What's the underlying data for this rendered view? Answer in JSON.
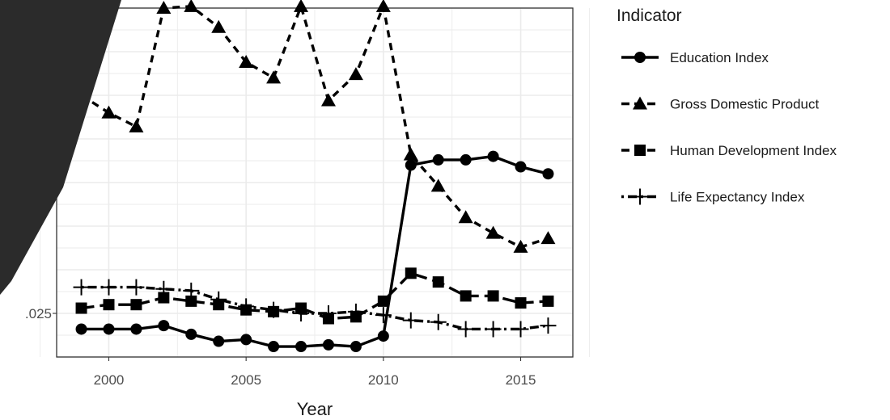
{
  "chart_data": {
    "type": "line",
    "xlabel": "Year",
    "ylabel": "",
    "x_ticks": [
      2000,
      2005,
      2010,
      2015
    ],
    "y_tick_labels": [
      ".025"
    ],
    "xlim": [
      1998.1,
      2016.9
    ],
    "ylim": [
      0.0,
      0.2
    ],
    "legend": {
      "title": "Indicator",
      "position": "right"
    },
    "grid": true,
    "x": [
      1999,
      2000,
      2001,
      2002,
      2003,
      2004,
      2005,
      2006,
      2007,
      2008,
      2009,
      2010,
      2011,
      2012,
      2013,
      2014,
      2015,
      2016
    ],
    "series": [
      {
        "name": "Education Index",
        "linetype": "solid",
        "marker": "circle",
        "values": [
          0.016,
          0.016,
          0.016,
          0.018,
          0.013,
          0.009,
          0.01,
          0.006,
          0.006,
          0.007,
          0.006,
          0.012,
          0.11,
          0.113,
          0.113,
          0.115,
          0.109,
          0.105
        ]
      },
      {
        "name": "Gross Domestic Product",
        "linetype": "dashed",
        "marker": "triangle",
        "values": [
          0.15,
          0.14,
          0.132,
          0.2,
          0.201,
          0.189,
          0.169,
          0.16,
          0.201,
          0.147,
          0.162,
          0.201,
          0.116,
          0.098,
          0.08,
          0.071,
          0.063,
          0.068
        ]
      },
      {
        "name": "Human Development Index",
        "linetype": "longdash",
        "marker": "square",
        "values": [
          0.028,
          0.03,
          0.03,
          0.034,
          0.032,
          0.03,
          0.027,
          0.026,
          0.028,
          0.022,
          0.023,
          0.032,
          0.048,
          0.043,
          0.035,
          0.035,
          0.031,
          0.032
        ]
      },
      {
        "name": "Life Expectancy Index",
        "linetype": "dotdash",
        "marker": "plus",
        "values": [
          0.04,
          0.04,
          0.04,
          0.039,
          0.038,
          0.033,
          0.029,
          0.027,
          0.025,
          0.025,
          0.026,
          0.024,
          0.021,
          0.02,
          0.016,
          0.016,
          0.016,
          0.018
        ]
      }
    ]
  },
  "overlay": {
    "color": "#2b2b2b"
  }
}
